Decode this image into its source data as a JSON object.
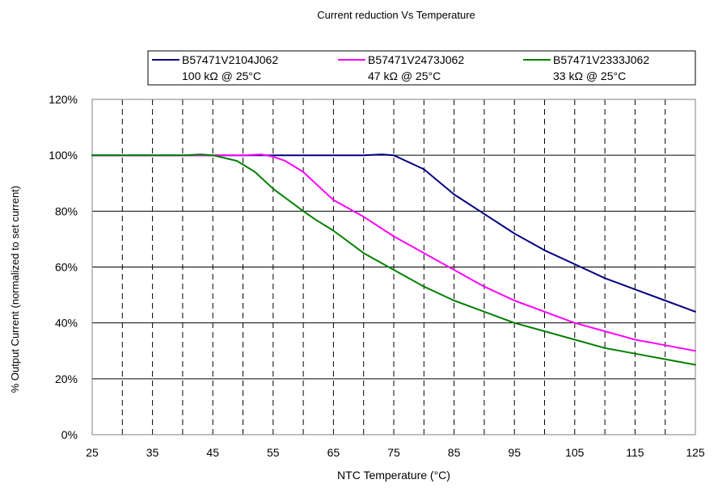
{
  "chart_data": {
    "type": "line",
    "title": "Current reduction Vs Temperature",
    "xlabel": "NTC Temperature (°C)",
    "ylabel": "% Output Current (normalized to set current)",
    "xlim": [
      25,
      125
    ],
    "ylim": [
      0,
      120
    ],
    "x_ticks": [
      25,
      35,
      45,
      55,
      65,
      75,
      85,
      95,
      105,
      115,
      125
    ],
    "y_ticks": [
      0,
      20,
      40,
      60,
      80,
      100,
      120
    ],
    "y_tick_labels": [
      "0%",
      "20%",
      "40%",
      "60%",
      "80%",
      "100%",
      "120%"
    ],
    "x_minor_gridlines": [
      30,
      35,
      40,
      45,
      50,
      55,
      60,
      65,
      70,
      75,
      80,
      85,
      90,
      95,
      100,
      105,
      110,
      115,
      120
    ],
    "grid": {
      "horizontal": "solid",
      "vertical": "dashed"
    },
    "legend_position": "top-right",
    "series": [
      {
        "name": "B57471V2104J062",
        "subtitle": "100 kΩ @ 25°C",
        "color": "#000080",
        "points": [
          [
            25,
            100
          ],
          [
            30,
            100
          ],
          [
            35,
            100
          ],
          [
            40,
            100
          ],
          [
            45,
            100
          ],
          [
            50,
            100
          ],
          [
            55,
            100
          ],
          [
            60,
            100
          ],
          [
            65,
            100
          ],
          [
            70,
            100
          ],
          [
            73,
            100.3
          ],
          [
            75,
            100
          ],
          [
            77,
            98
          ],
          [
            80,
            95
          ],
          [
            85,
            86
          ],
          [
            90,
            79
          ],
          [
            95,
            72
          ],
          [
            100,
            66
          ],
          [
            105,
            61
          ],
          [
            110,
            56
          ],
          [
            115,
            52
          ],
          [
            120,
            48
          ],
          [
            125,
            44
          ]
        ]
      },
      {
        "name": "B57471V2473J062",
        "subtitle": "47 kΩ @ 25°C",
        "color": "#ff00ff",
        "points": [
          [
            25,
            100
          ],
          [
            30,
            100
          ],
          [
            35,
            100
          ],
          [
            40,
            100
          ],
          [
            45,
            100
          ],
          [
            50,
            100
          ],
          [
            53,
            100.3
          ],
          [
            55,
            99.5
          ],
          [
            57,
            98
          ],
          [
            60,
            94
          ],
          [
            62,
            90
          ],
          [
            65,
            84
          ],
          [
            70,
            78
          ],
          [
            75,
            71
          ],
          [
            80,
            65
          ],
          [
            85,
            59
          ],
          [
            90,
            53
          ],
          [
            95,
            48
          ],
          [
            100,
            44
          ],
          [
            105,
            40
          ],
          [
            110,
            37
          ],
          [
            115,
            34
          ],
          [
            120,
            32
          ],
          [
            125,
            30
          ]
        ]
      },
      {
        "name": "B57471V2333J062",
        "subtitle": "33 kΩ @ 25°C",
        "color": "#008000",
        "points": [
          [
            25,
            100
          ],
          [
            30,
            100
          ],
          [
            35,
            100
          ],
          [
            40,
            100
          ],
          [
            43,
            100.3
          ],
          [
            45,
            100
          ],
          [
            47,
            99
          ],
          [
            49,
            98
          ],
          [
            52,
            94
          ],
          [
            55,
            88
          ],
          [
            60,
            80
          ],
          [
            62,
            77
          ],
          [
            65,
            73
          ],
          [
            70,
            65
          ],
          [
            75,
            59
          ],
          [
            80,
            53
          ],
          [
            85,
            48
          ],
          [
            90,
            44
          ],
          [
            95,
            40
          ],
          [
            100,
            37
          ],
          [
            105,
            34
          ],
          [
            110,
            31
          ],
          [
            115,
            29
          ],
          [
            120,
            27
          ],
          [
            125,
            25
          ]
        ]
      }
    ]
  }
}
